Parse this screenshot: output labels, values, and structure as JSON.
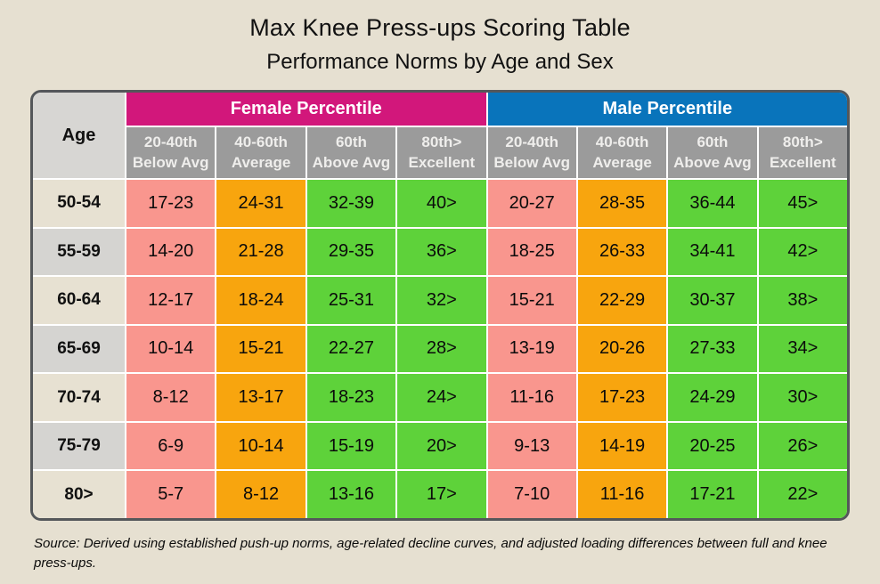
{
  "page": {
    "title": "Max Knee Press-ups Scoring Table",
    "subtitle": "Performance Norms by Age and Sex",
    "source": "Source: Derived using established push-up norms, age-related decline curves, and adjusted loading differences between full and knee press-ups."
  },
  "colors": {
    "page_background": "#e6e0d1",
    "female_header": "#d2177b",
    "male_header": "#0974bb",
    "subheader_gray": "#9b9b9b",
    "below_avg_pink": "#f9968e",
    "average_orange": "#f8a50e",
    "above_avg_green": "#5ed23a",
    "excellent_green": "#5ed23a",
    "age_row_odd": "#e7e1d2",
    "age_row_even": "#d5d4d1",
    "table_border": "#54575a"
  },
  "chart_data": {
    "type": "table",
    "title": "Max Knee Press-ups Scoring Table",
    "subtitle": "Performance Norms by Age and Sex",
    "age_header": "Age",
    "groups": [
      {
        "label": "Female Percentile"
      },
      {
        "label": "Male Percentile"
      }
    ],
    "subheaders": [
      {
        "line1": "20-40th",
        "line2": "Below Avg"
      },
      {
        "line1": "40-60th",
        "line2": "Average"
      },
      {
        "line1": "60th",
        "line2": "Above Avg"
      },
      {
        "line1": "80th>",
        "line2": "Excellent"
      }
    ],
    "rows": [
      {
        "age": "50-54",
        "female": [
          "17-23",
          "24-31",
          "32-39",
          "40>"
        ],
        "male": [
          "20-27",
          "28-35",
          "36-44",
          "45>"
        ]
      },
      {
        "age": "55-59",
        "female": [
          "14-20",
          "21-28",
          "29-35",
          "36>"
        ],
        "male": [
          "18-25",
          "26-33",
          "34-41",
          "42>"
        ]
      },
      {
        "age": "60-64",
        "female": [
          "12-17",
          "18-24",
          "25-31",
          "32>"
        ],
        "male": [
          "15-21",
          "22-29",
          "30-37",
          "38>"
        ]
      },
      {
        "age": "65-69",
        "female": [
          "10-14",
          "15-21",
          "22-27",
          "28>"
        ],
        "male": [
          "13-19",
          "20-26",
          "27-33",
          "34>"
        ]
      },
      {
        "age": "70-74",
        "female": [
          "8-12",
          "13-17",
          "18-23",
          "24>"
        ],
        "male": [
          "11-16",
          "17-23",
          "24-29",
          "30>"
        ]
      },
      {
        "age": "75-79",
        "female": [
          "6-9",
          "10-14",
          "15-19",
          "20>"
        ],
        "male": [
          "9-13",
          "14-19",
          "20-25",
          "26>"
        ]
      },
      {
        "age": "80>",
        "female": [
          "5-7",
          "8-12",
          "13-16",
          "17>"
        ],
        "male": [
          "7-10",
          "11-16",
          "17-21",
          "22>"
        ]
      }
    ],
    "source_note": "Source: Derived using established push-up norms, age-related decline curves, and adjusted loading differences between full and knee press-ups."
  }
}
